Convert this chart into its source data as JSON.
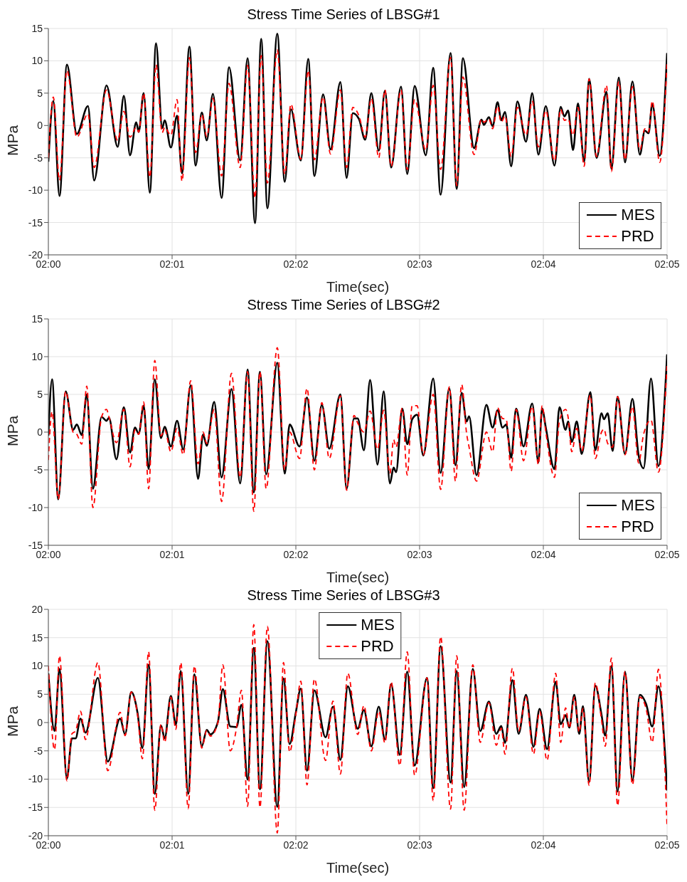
{
  "chart_data": [
    {
      "type": "line",
      "title": "Stress Time Series of LBSG#1",
      "xlabel": "Time(sec)",
      "ylabel": "MPa",
      "xlim": [
        120,
        125
      ],
      "xticks": [
        {
          "value": 120,
          "label": "02:00"
        },
        {
          "value": 121,
          "label": "02:01"
        },
        {
          "value": 122,
          "label": "02:02"
        },
        {
          "value": 123,
          "label": "02:03"
        },
        {
          "value": 124,
          "label": "02:04"
        },
        {
          "value": 125,
          "label": "02:05"
        }
      ],
      "ylim": [
        -20,
        15
      ],
      "yticks": [
        -20,
        -15,
        -10,
        -5,
        0,
        5,
        10,
        15
      ],
      "grid": true,
      "legend": "bottom right",
      "x": [
        120,
        120.04,
        120.09,
        120.15,
        120.23,
        120.32,
        120.37,
        120.47,
        120.56,
        120.61,
        120.66,
        120.71,
        120.73,
        120.77,
        120.82,
        120.87,
        120.92,
        120.94,
        120.99,
        121.04,
        121.08,
        121.14,
        121.19,
        121.24,
        121.28,
        121.33,
        121.4,
        121.46,
        121.55,
        121.61,
        121.67,
        121.72,
        121.77,
        121.85,
        121.91,
        121.96,
        122.04,
        122.1,
        122.15,
        122.22,
        122.28,
        122.36,
        122.41,
        122.46,
        122.51,
        122.56,
        122.61,
        122.67,
        122.72,
        122.77,
        122.85,
        122.9,
        122.96,
        123.05,
        123.11,
        123.17,
        123.25,
        123.3,
        123.35,
        123.44,
        123.5,
        123.52,
        123.56,
        123.59,
        123.63,
        123.66,
        123.69,
        123.74,
        123.79,
        123.86,
        123.91,
        123.96,
        124.02,
        124.09,
        124.14,
        124.17,
        124.2,
        124.24,
        124.28,
        124.33,
        124.37,
        124.43,
        124.51,
        124.55,
        124.61,
        124.66,
        124.72,
        124.78,
        124.82,
        124.85,
        124.88,
        124.94,
        125
      ],
      "series": [
        {
          "name": "MES",
          "color": "#000000",
          "line_style": "solid",
          "values": [
            -5.6,
            3.8,
            -10.9,
            9.4,
            -1.3,
            3.0,
            -8.5,
            6.2,
            -3.3,
            4.6,
            -4.6,
            0.5,
            -1.0,
            5.0,
            -10.4,
            12.7,
            -0.4,
            0.8,
            -3.4,
            1.5,
            -7.4,
            12.2,
            -6.2,
            2.0,
            -2.3,
            4.9,
            -11.2,
            9.0,
            -5.4,
            10.4,
            -15.1,
            13.4,
            -12.8,
            14.2,
            -8.7,
            2.5,
            -5.4,
            10.3,
            -7.8,
            4.8,
            -3.7,
            6.7,
            -8.1,
            1.9,
            1.0,
            -2.2,
            5.0,
            -3.9,
            5.4,
            -6.5,
            6.0,
            -7.5,
            6.1,
            -4.6,
            8.9,
            -10.7,
            11.2,
            -9.8,
            10.4,
            -3.5,
            0.9,
            0.1,
            1.3,
            -0.1,
            3.6,
            0.8,
            2.1,
            -6.3,
            3.7,
            -2.5,
            5.0,
            -4.5,
            3.0,
            -6.2,
            2.9,
            1.4,
            2.3,
            -3.8,
            3.4,
            -5.6,
            7.2,
            -5.0,
            5.2,
            -6.7,
            7.4,
            -5.7,
            6.8,
            -4.5,
            -0.8,
            -1.2,
            3.3,
            -4.7,
            11.2
          ]
        },
        {
          "name": "PRD",
          "color": "#ff0000",
          "line_style": "dashed",
          "values": [
            -5.0,
            4.4,
            -8.5,
            8.5,
            -1.8,
            1.8,
            -6.5,
            5.5,
            -2.3,
            2.2,
            -1.8,
            -0.3,
            -1.0,
            5.0,
            -8.0,
            9.4,
            -1.1,
            -0.3,
            -1.5,
            4.0,
            -8.6,
            10.5,
            -4.2,
            1.7,
            -1.7,
            4.2,
            -7.8,
            6.5,
            -6.5,
            9.3,
            -11.2,
            10.8,
            -8.9,
            11.7,
            -7.5,
            3.3,
            -5.2,
            8.5,
            -5.3,
            4.4,
            -4.4,
            5.5,
            -6.5,
            2.8,
            1.5,
            -1.8,
            4.2,
            -5.0,
            5.5,
            -6.3,
            5.5,
            -6.8,
            4.0,
            -3.8,
            6.2,
            -6.8,
            10.5,
            -9.3,
            7.5,
            -4.5,
            1.0,
            0.5,
            1.0,
            -0.5,
            3.0,
            0.5,
            1.5,
            -4.8,
            2.8,
            -1.5,
            3.8,
            -3.3,
            2.3,
            -5.5,
            2.5,
            0.8,
            1.0,
            -1.5,
            2.8,
            -6.3,
            7.2,
            -4.8,
            6.2,
            -7.1,
            6.8,
            -5.3,
            6.0,
            -3.8,
            -0.5,
            -1.0,
            3.8,
            -5.7,
            10.0
          ]
        }
      ]
    },
    {
      "type": "line",
      "title": "Stress Time Series of LBSG#2",
      "xlabel": "Time(sec)",
      "ylabel": "MPa",
      "xlim": [
        120,
        125
      ],
      "xticks": [
        {
          "value": 120,
          "label": "02:00"
        },
        {
          "value": 121,
          "label": "02:01"
        },
        {
          "value": 122,
          "label": "02:02"
        },
        {
          "value": 123,
          "label": "02:03"
        },
        {
          "value": 124,
          "label": "02:04"
        },
        {
          "value": 125,
          "label": "02:05"
        }
      ],
      "ylim": [
        -15,
        15
      ],
      "yticks": [
        -15,
        -10,
        -5,
        0,
        5,
        10,
        15
      ],
      "grid": true,
      "legend": "bottom right",
      "x": [
        120,
        120.03,
        120.08,
        120.14,
        120.2,
        120.23,
        120.27,
        120.31,
        120.36,
        120.43,
        120.47,
        120.49,
        120.55,
        120.61,
        120.66,
        120.7,
        120.73,
        120.77,
        120.81,
        120.86,
        120.91,
        120.94,
        120.99,
        121.04,
        121.09,
        121.15,
        121.21,
        121.25,
        121.28,
        121.34,
        121.4,
        121.48,
        121.55,
        121.61,
        121.66,
        121.71,
        121.76,
        121.85,
        121.91,
        121.95,
        122.03,
        122.09,
        122.15,
        122.21,
        122.27,
        122.36,
        122.41,
        122.47,
        122.5,
        122.55,
        122.6,
        122.66,
        122.71,
        122.76,
        122.79,
        122.81,
        122.86,
        122.9,
        122.94,
        122.98,
        123.03,
        123.11,
        123.17,
        123.24,
        123.29,
        123.34,
        123.38,
        123.4,
        123.46,
        123.54,
        123.59,
        123.63,
        123.67,
        123.7,
        123.74,
        123.78,
        123.84,
        123.91,
        123.96,
        123.99,
        124.02,
        124.09,
        124.13,
        124.18,
        124.2,
        124.23,
        124.27,
        124.31,
        124.38,
        124.42,
        124.47,
        124.49,
        124.52,
        124.56,
        124.6,
        124.66,
        124.72,
        124.77,
        124.81,
        124.87,
        124.93,
        125
      ],
      "series": [
        {
          "name": "MES",
          "color": "#000000",
          "line_style": "solid",
          "values": [
            -0.5,
            7.0,
            -8.9,
            5.4,
            0.3,
            1.0,
            -0.4,
            5.0,
            -7.5,
            2.0,
            1.5,
            1.9,
            -3.6,
            3.3,
            -2.7,
            0.6,
            -0.2,
            3.5,
            -4.9,
            7.0,
            -0.8,
            0.7,
            -1.9,
            1.5,
            -2.3,
            6.2,
            -6.2,
            -0.3,
            -1.8,
            4.0,
            -6.0,
            5.7,
            -6.8,
            8.3,
            -8.0,
            8.0,
            -5.6,
            9.2,
            -5.5,
            1.0,
            -1.9,
            4.6,
            -3.8,
            3.6,
            -2.2,
            5.0,
            -7.5,
            1.8,
            1.8,
            -2.4,
            6.9,
            -4.3,
            5.4,
            -6.8,
            -4.7,
            -5.3,
            3.1,
            -1.6,
            1.7,
            2.3,
            -3.1,
            7.1,
            -5.4,
            5.8,
            -4.4,
            5.2,
            1.4,
            2.1,
            -5.7,
            3.6,
            0.6,
            2.9,
            0.6,
            1.0,
            -3.4,
            3.1,
            -1.9,
            3.8,
            -4.0,
            3.1,
            0.6,
            -4.9,
            3.3,
            0.3,
            1.4,
            -1.3,
            1.4,
            -2.9,
            5.3,
            -2.4,
            2.5,
            1.7,
            2.5,
            -2.5,
            4.7,
            -2.9,
            4.4,
            -3.1,
            -4.8,
            7.1,
            -4.5,
            10.3
          ]
        },
        {
          "name": "PRD",
          "color": "#ff0000",
          "line_style": "dashed",
          "values": [
            -3.7,
            2.7,
            -8.9,
            5.4,
            0.0,
            -0.3,
            -1.6,
            6.1,
            -10.0,
            2.0,
            3.0,
            2.0,
            -1.4,
            3.0,
            -4.6,
            0.3,
            -0.3,
            4.0,
            -7.5,
            9.5,
            -0.5,
            0.3,
            -2.6,
            0.5,
            -3.0,
            6.8,
            -4.2,
            0.0,
            -1.5,
            3.0,
            -9.2,
            7.8,
            -6.0,
            8.0,
            -10.5,
            8.0,
            -7.5,
            11.2,
            -5.0,
            0.0,
            -3.5,
            5.8,
            -5.0,
            3.9,
            -3.5,
            4.8,
            -7.7,
            2.2,
            1.2,
            0.0,
            2.8,
            -2.3,
            2.9,
            -5.5,
            -1.0,
            -2.0,
            3.2,
            -5.7,
            3.5,
            3.5,
            -3.0,
            5.0,
            -7.6,
            6.0,
            -6.5,
            6.3,
            -0.2,
            -2.0,
            -6.5,
            0.0,
            -2.6,
            3.2,
            1.8,
            1.7,
            -5.2,
            3.0,
            -3.8,
            3.4,
            -4.3,
            3.5,
            0.0,
            -6.0,
            1.5,
            3.0,
            2.0,
            -2.6,
            0.5,
            -2.5,
            4.9,
            -3.5,
            0.0,
            0.4,
            -1.5,
            -2.0,
            4.7,
            -3.0,
            3.4,
            -4.1,
            -0.3,
            1.6,
            -5.3,
            9.0
          ]
        }
      ]
    },
    {
      "type": "line",
      "title": "Stress Time Series of LBSG#3",
      "xlabel": "Time(sec)",
      "ylabel": "MPa",
      "xlim": [
        120,
        125
      ],
      "xticks": [
        {
          "value": 120,
          "label": "02:00"
        },
        {
          "value": 121,
          "label": "02:01"
        },
        {
          "value": 122,
          "label": "02:02"
        },
        {
          "value": 123,
          "label": "02:03"
        },
        {
          "value": 124,
          "label": "02:04"
        },
        {
          "value": 125,
          "label": "02:05"
        }
      ],
      "ylim": [
        -20,
        20
      ],
      "yticks": [
        -20,
        -15,
        -10,
        -5,
        0,
        5,
        10,
        15,
        20
      ],
      "grid": true,
      "legend": "top",
      "x": [
        120,
        120.05,
        120.09,
        120.15,
        120.19,
        120.22,
        120.26,
        120.3,
        120.4,
        120.48,
        120.58,
        120.62,
        120.67,
        120.72,
        120.76,
        120.81,
        120.86,
        120.91,
        120.94,
        120.99,
        121.03,
        121.07,
        121.13,
        121.18,
        121.24,
        121.28,
        121.31,
        121.37,
        121.41,
        121.47,
        121.52,
        121.56,
        121.61,
        121.66,
        121.71,
        121.77,
        121.85,
        121.9,
        121.95,
        122,
        122.04,
        122.09,
        122.15,
        122.24,
        122.3,
        122.36,
        122.42,
        122.5,
        122.55,
        122.61,
        122.67,
        122.72,
        122.77,
        122.84,
        122.9,
        122.96,
        123.06,
        123.11,
        123.17,
        123.25,
        123.3,
        123.36,
        123.43,
        123.49,
        123.56,
        123.62,
        123.66,
        123.69,
        123.75,
        123.8,
        123.86,
        123.92,
        123.97,
        124.03,
        124.1,
        124.14,
        124.18,
        124.21,
        124.25,
        124.29,
        124.32,
        124.37,
        124.42,
        124.47,
        124.5,
        124.55,
        124.6,
        124.66,
        124.72,
        124.78,
        124.83,
        124.88,
        124.93,
        125
      ],
      "series": [
        {
          "name": "MES",
          "color": "#000000",
          "line_style": "solid",
          "values": [
            8.7,
            -1.5,
            9.5,
            -9.9,
            -2.8,
            -2.8,
            0.7,
            -1.8,
            7.9,
            -6.9,
            0.7,
            -2.1,
            5.4,
            1.8,
            -4.5,
            10.2,
            -12.6,
            -0.5,
            -2.8,
            4.7,
            -0.4,
            9.1,
            -12.6,
            8.5,
            -4.2,
            -1.3,
            -2.1,
            0.1,
            5.9,
            -0.7,
            -0.8,
            3.1,
            -10.1,
            13.2,
            -11.8,
            14.4,
            -14.9,
            7.8,
            -3.8,
            1.8,
            6.0,
            -8.5,
            5.7,
            -2.6,
            2.8,
            -6.6,
            6.4,
            -1.1,
            2.2,
            -4.2,
            2.8,
            -3.0,
            6.8,
            -5.7,
            9.0,
            -7.6,
            7.9,
            -11.6,
            13.5,
            -10.6,
            9.1,
            -11.4,
            9.5,
            -1.5,
            3.7,
            -2.0,
            -0.6,
            -3.6,
            7.5,
            -2.0,
            4.9,
            -4.3,
            2.4,
            -4.7,
            7.2,
            -0.3,
            1.3,
            -0.9,
            4.9,
            -2.0,
            2.9,
            -10.5,
            6.5,
            1.4,
            -2.3,
            10.0,
            -12.2,
            9.0,
            -10.2,
            4.9,
            3.3,
            -0.7,
            6.4,
            -12.0
          ]
        },
        {
          "name": "PRD",
          "color": "#ff0000",
          "line_style": "dashed",
          "values": [
            10.0,
            -4.8,
            11.8,
            -10.3,
            -2.0,
            -1.5,
            2.0,
            -3.0,
            10.6,
            -8.5,
            1.8,
            -2.3,
            5.4,
            1.5,
            -6.4,
            12.5,
            -15.5,
            -0.3,
            -3.5,
            4.5,
            -1.2,
            10.6,
            -15.2,
            10.0,
            -4.5,
            -1.4,
            -2.4,
            0.0,
            10.2,
            -5.0,
            -1.0,
            5.7,
            -14.8,
            17.3,
            -15.0,
            17.0,
            -19.5,
            10.6,
            -5.2,
            1.5,
            7.3,
            -11.0,
            7.7,
            -6.7,
            3.8,
            -9.1,
            8.7,
            -2.1,
            3.0,
            -5.0,
            2.0,
            -3.6,
            7.2,
            -7.6,
            12.5,
            -9.3,
            7.9,
            -13.8,
            15.2,
            -15.3,
            11.8,
            -15.5,
            10.2,
            -3.5,
            3.5,
            -4.0,
            -1.0,
            -5.6,
            9.6,
            -1.5,
            4.5,
            -5.6,
            2.0,
            -6.7,
            8.7,
            -3.5,
            2.6,
            -1.0,
            4.5,
            -1.7,
            2.5,
            -11.1,
            7.0,
            0.5,
            -4.2,
            11.4,
            -14.7,
            9.0,
            -11.0,
            4.5,
            2.5,
            -3.5,
            9.4,
            -18.5
          ]
        }
      ]
    }
  ]
}
